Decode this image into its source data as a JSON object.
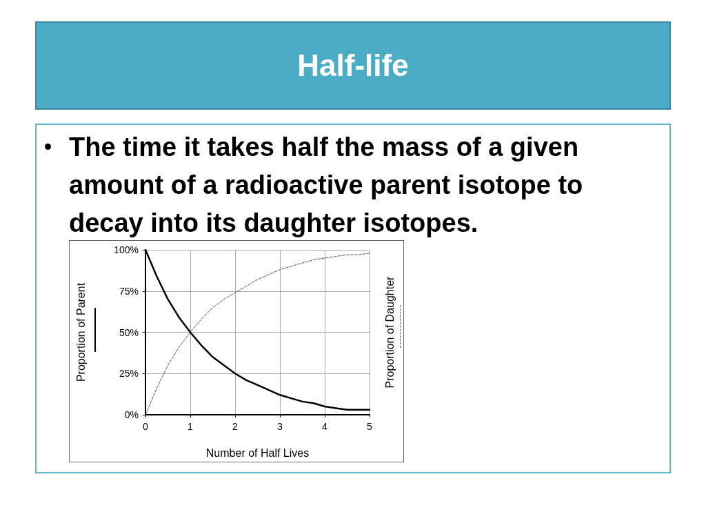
{
  "chart_data": {
    "type": "line",
    "title": "Half-life",
    "annotations": [
      "The time it takes half the mass of a given amount of a radioactive parent isotope to decay into its daughter isotopes."
    ],
    "xlabel": "Number of Half Lives",
    "ylabel": "Proportion of Parent",
    "y2label": "Proportion of Daughter",
    "x": [
      0,
      0.25,
      0.5,
      0.75,
      1,
      1.25,
      1.5,
      1.75,
      2,
      2.25,
      2.5,
      2.75,
      3,
      3.25,
      3.5,
      3.75,
      4,
      4.25,
      4.5,
      4.75,
      5
    ],
    "series": [
      {
        "color": "#000000",
        "values": [
          100,
          84,
          70,
          59,
          50,
          42,
          35,
          30,
          25,
          21,
          18,
          15,
          12,
          10,
          8,
          7,
          5,
          4,
          3,
          3,
          3
        ]
      },
      {
        "color": "#555555",
        "line_style": "dashed",
        "values": [
          0,
          16,
          30,
          41,
          50,
          58,
          65,
          70,
          74,
          78,
          82,
          85,
          88,
          90,
          92,
          94,
          95,
          96,
          97,
          97,
          98
        ]
      }
    ],
    "xlim": [
      0,
      5
    ],
    "xticks": [
      0,
      1,
      2,
      3,
      4,
      5
    ],
    "ylim": [
      0,
      100
    ],
    "yticks": [
      {
        "value": 0,
        "label": "0%"
      },
      {
        "value": 25,
        "label": "25%"
      },
      {
        "value": 50,
        "label": "50%"
      },
      {
        "value": 75,
        "label": "75%"
      },
      {
        "value": 100,
        "label": "100%"
      }
    ],
    "grid": true,
    "marker": "none",
    "line_style": "solid"
  }
}
